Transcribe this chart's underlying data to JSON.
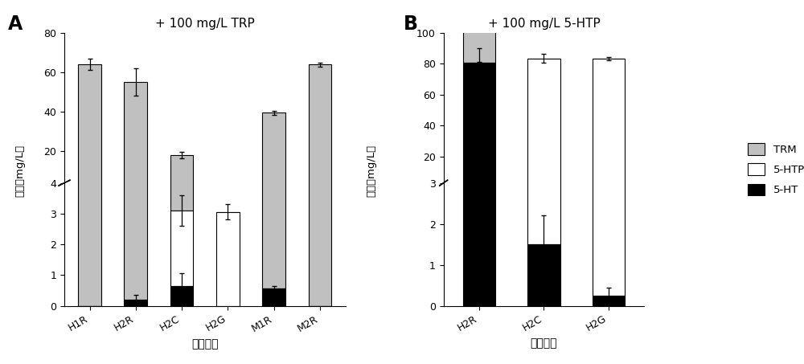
{
  "panel_A": {
    "title": "+ 100 mg/L TRP",
    "categories": [
      "H1R",
      "H2R",
      "H2C",
      "H2G",
      "M1R",
      "M2R"
    ],
    "TRM_values": [
      64,
      55,
      15,
      0,
      39,
      64
    ],
    "TRM_errors": [
      3,
      7,
      1.5,
      0,
      1,
      1
    ],
    "HTP_values": [
      0,
      0,
      2.45,
      3.05,
      0,
      0
    ],
    "HTP_errors": [
      0,
      0,
      0.5,
      0.25,
      0,
      0
    ],
    "HT_values": [
      0,
      0.2,
      0.65,
      0,
      0.55,
      0
    ],
    "HT_errors": [
      0,
      0.15,
      0.4,
      0,
      0.1,
      0
    ],
    "upper_ylim": [
      4,
      80
    ],
    "upper_yticks": [
      20,
      40,
      60,
      80
    ],
    "lower_ylim": [
      0,
      4
    ],
    "lower_yticks": [
      0,
      1,
      2,
      3,
      4
    ]
  },
  "panel_B": {
    "title": "+ 100 mg/L 5-HTP",
    "categories": [
      "H2R",
      "H2C",
      "H2G"
    ],
    "TRM_values": [
      53,
      0,
      0
    ],
    "TRM_errors": [
      5,
      0,
      0
    ],
    "HTP_values": [
      0.65,
      82,
      83
    ],
    "HTP_errors": [
      0.65,
      3,
      1
    ],
    "HT_values": [
      80,
      1.5,
      0.25
    ],
    "HT_errors": [
      10,
      0.7,
      0.2
    ],
    "upper_ylim": [
      3,
      100
    ],
    "upper_yticks": [
      20,
      40,
      60,
      80,
      100
    ],
    "lower_ylim": [
      0,
      3
    ],
    "lower_yticks": [
      0,
      1,
      2,
      3
    ]
  },
  "colors": {
    "TRM": "#c0c0c0",
    "5HTP": "#ffffff",
    "5HT": "#000000"
  },
  "legend_labels": [
    "TRM",
    "5-HTP",
    "5-HT"
  ],
  "ylabel": "濃度（mg/L）",
  "xlabel": "通路变体",
  "bar_width": 0.5
}
